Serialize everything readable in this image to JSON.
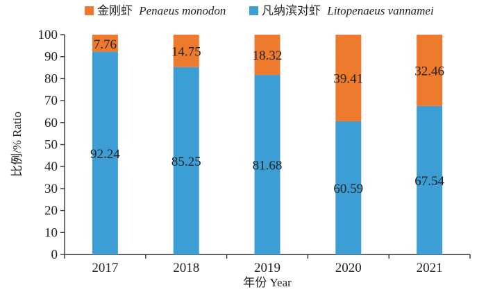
{
  "chart_data": {
    "type": "bar",
    "stacked": true,
    "categories": [
      "2017",
      "2018",
      "2019",
      "2020",
      "2021"
    ],
    "series": [
      {
        "name": "凡纳滨对虾",
        "name_latin": "Litopenaeus vannamei",
        "color": "#3d9ed6",
        "values": [
          92.24,
          85.25,
          81.68,
          60.59,
          67.54
        ]
      },
      {
        "name": "金刚虾",
        "name_latin": "Penaeus monodon",
        "color": "#ee7a2e",
        "values": [
          7.76,
          14.75,
          18.32,
          39.41,
          32.46
        ]
      }
    ],
    "ylim": [
      0,
      100
    ],
    "yticks": [
      "0",
      "10",
      "20",
      "30",
      "40",
      "50",
      "60",
      "70",
      "80",
      "90",
      "100"
    ],
    "xlabel": "年份 Year",
    "ylabel": "比例/% Ratio",
    "legend_position": "top",
    "grid": false
  }
}
